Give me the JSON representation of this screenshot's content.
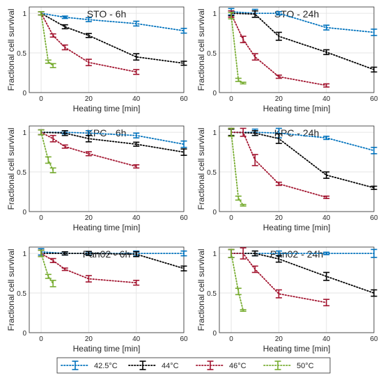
{
  "chart_data": {
    "type": "line",
    "x_label": "Heating time [min]",
    "y_label": "Fractional cell survival",
    "x_ticks": [
      0,
      20,
      40,
      60
    ],
    "y_ticks": [
      0,
      0.5,
      1
    ],
    "xlim": [
      -5,
      60
    ],
    "ylim": [
      0,
      1.08
    ],
    "grid": true,
    "line_style": "dotted",
    "legend_placement": "bottom",
    "legend": [
      {
        "name": "42.5°C",
        "color": "#0072BD"
      },
      {
        "name": "44°C",
        "color": "#000000"
      },
      {
        "name": "46°C",
        "color": "#A2142F"
      },
      {
        "name": "50°C",
        "color": "#77AC30"
      }
    ],
    "panels": [
      {
        "title": "STO - 6h",
        "series": [
          {
            "name": "42.5°C",
            "points": [
              [
                0,
                1.0,
                0.02
              ],
              [
                10,
                0.95,
                0.015
              ],
              [
                20,
                0.92,
                0.025
              ],
              [
                40,
                0.87,
                0.03
              ],
              [
                60,
                0.78,
                0.03
              ]
            ]
          },
          {
            "name": "44°C",
            "points": [
              [
                0,
                1.0,
                0.02
              ],
              [
                10,
                0.83,
                0.025
              ],
              [
                20,
                0.72,
                0.025
              ],
              [
                40,
                0.45,
                0.04
              ],
              [
                60,
                0.37,
                0.025
              ]
            ]
          },
          {
            "name": "46°C",
            "points": [
              [
                0,
                1.0,
                0.02
              ],
              [
                5,
                0.72,
                0.02
              ],
              [
                10,
                0.57,
                0.03
              ],
              [
                20,
                0.38,
                0.04
              ],
              [
                40,
                0.26,
                0.03
              ]
            ]
          },
          {
            "name": "50°C",
            "points": [
              [
                0,
                1.0,
                0.02
              ],
              [
                3,
                0.39,
                0.02
              ],
              [
                5,
                0.34,
                0.025
              ]
            ]
          }
        ]
      },
      {
        "title": "STO - 24h",
        "series": [
          {
            "name": "42.5°C",
            "points": [
              [
                0,
                1.02,
                0.04
              ],
              [
                10,
                1.0,
                0.05
              ],
              [
                20,
                1.0,
                0.02
              ],
              [
                40,
                0.82,
                0.03
              ],
              [
                60,
                0.76,
                0.04
              ]
            ]
          },
          {
            "name": "44°C",
            "points": [
              [
                0,
                1.0,
                0.03
              ],
              [
                10,
                0.99,
                0.04
              ],
              [
                20,
                0.71,
                0.05
              ],
              [
                40,
                0.51,
                0.03
              ],
              [
                60,
                0.29,
                0.03
              ]
            ]
          },
          {
            "name": "46°C",
            "points": [
              [
                0,
                0.99,
                0.04
              ],
              [
                5,
                0.67,
                0.04
              ],
              [
                10,
                0.45,
                0.04
              ],
              [
                20,
                0.2,
                0.02
              ],
              [
                40,
                0.09,
                0.02
              ]
            ]
          },
          {
            "name": "50°C",
            "points": [
              [
                0,
                0.97,
                0.04
              ],
              [
                3,
                0.16,
                0.02
              ],
              [
                5,
                0.12,
                0.01
              ]
            ]
          }
        ]
      },
      {
        "title": "KPC - 6h",
        "series": [
          {
            "name": "42.5°C",
            "points": [
              [
                0,
                1.0,
                0.03
              ],
              [
                10,
                1.0,
                0.02
              ],
              [
                20,
                0.99,
                0.03
              ],
              [
                40,
                0.96,
                0.03
              ],
              [
                60,
                0.85,
                0.04
              ]
            ]
          },
          {
            "name": "44°C",
            "points": [
              [
                0,
                1.0,
                0.03
              ],
              [
                10,
                0.99,
                0.03
              ],
              [
                20,
                0.92,
                0.04
              ],
              [
                40,
                0.85,
                0.025
              ],
              [
                60,
                0.75,
                0.04
              ]
            ]
          },
          {
            "name": "46°C",
            "points": [
              [
                0,
                1.0,
                0.03
              ],
              [
                5,
                0.92,
                0.04
              ],
              [
                10,
                0.82,
                0.02
              ],
              [
                20,
                0.73,
                0.025
              ],
              [
                40,
                0.57,
                0.02
              ]
            ]
          },
          {
            "name": "50°C",
            "points": [
              [
                0,
                1.0,
                0.03
              ],
              [
                3,
                0.65,
                0.04
              ],
              [
                5,
                0.52,
                0.03
              ]
            ]
          }
        ]
      },
      {
        "title": "KPC - 24h",
        "series": [
          {
            "name": "42.5°C",
            "points": [
              [
                0,
                1.0,
                0.05
              ],
              [
                10,
                1.0,
                0.04
              ],
              [
                20,
                0.99,
                0.06
              ],
              [
                40,
                0.93,
                0.02
              ],
              [
                60,
                0.77,
                0.04
              ]
            ]
          },
          {
            "name": "44°C",
            "points": [
              [
                0,
                1.0,
                0.04
              ],
              [
                10,
                0.99,
                0.03
              ],
              [
                20,
                0.92,
                0.06
              ],
              [
                40,
                0.46,
                0.04
              ],
              [
                60,
                0.3,
                0.02
              ]
            ]
          },
          {
            "name": "46°C",
            "points": [
              [
                0,
                1.0,
                0.05
              ],
              [
                5,
                1.0,
                0.05
              ],
              [
                10,
                0.65,
                0.07
              ],
              [
                20,
                0.35,
                0.02
              ],
              [
                40,
                0.18,
                0.015
              ]
            ]
          },
          {
            "name": "50°C",
            "points": [
              [
                0,
                1.0,
                0.05
              ],
              [
                3,
                0.17,
                0.025
              ],
              [
                5,
                0.08,
                0.01
              ]
            ]
          }
        ]
      },
      {
        "title": "Pan02 - 6h",
        "series": [
          {
            "name": "42.5°C",
            "points": [
              [
                0,
                1.02,
                0.04
              ],
              [
                10,
                1.0,
                0.02
              ],
              [
                20,
                1.0,
                0.02
              ],
              [
                40,
                1.0,
                0.03
              ],
              [
                60,
                1.0,
                0.03
              ]
            ]
          },
          {
            "name": "44°C",
            "points": [
              [
                0,
                1.0,
                0.04
              ],
              [
                10,
                1.0,
                0.02
              ],
              [
                20,
                1.0,
                0.025
              ],
              [
                40,
                0.99,
                0.03
              ],
              [
                60,
                0.81,
                0.03
              ]
            ]
          },
          {
            "name": "46°C",
            "points": [
              [
                0,
                1.0,
                0.04
              ],
              [
                5,
                0.91,
                0.025
              ],
              [
                10,
                0.8,
                0.015
              ],
              [
                20,
                0.68,
                0.04
              ],
              [
                40,
                0.63,
                0.03
              ]
            ]
          },
          {
            "name": "50°C",
            "points": [
              [
                0,
                1.0,
                0.04
              ],
              [
                3,
                0.71,
                0.025
              ],
              [
                5,
                0.62,
                0.04
              ]
            ]
          }
        ]
      },
      {
        "title": "Pan02 - 24h",
        "series": [
          {
            "name": "42.5°C",
            "points": [
              [
                0,
                1.0,
                0.05
              ],
              [
                10,
                1.0,
                0.03
              ],
              [
                20,
                1.0,
                0.03
              ],
              [
                40,
                1.0,
                0.015
              ],
              [
                60,
                1.0,
                0.05
              ]
            ]
          },
          {
            "name": "44°C",
            "points": [
              [
                0,
                1.0,
                0.05
              ],
              [
                10,
                1.0,
                0.03
              ],
              [
                20,
                0.93,
                0.04
              ],
              [
                40,
                0.71,
                0.05
              ],
              [
                60,
                0.5,
                0.04
              ]
            ]
          },
          {
            "name": "46°C",
            "points": [
              [
                0,
                1.0,
                0.05
              ],
              [
                5,
                1.0,
                0.07
              ],
              [
                10,
                0.8,
                0.04
              ],
              [
                20,
                0.49,
                0.05
              ],
              [
                40,
                0.38,
                0.04
              ]
            ]
          },
          {
            "name": "50°C",
            "points": [
              [
                0,
                1.0,
                0.05
              ],
              [
                3,
                0.52,
                0.04
              ],
              [
                5,
                0.28,
                0.01
              ]
            ]
          }
        ]
      }
    ]
  }
}
